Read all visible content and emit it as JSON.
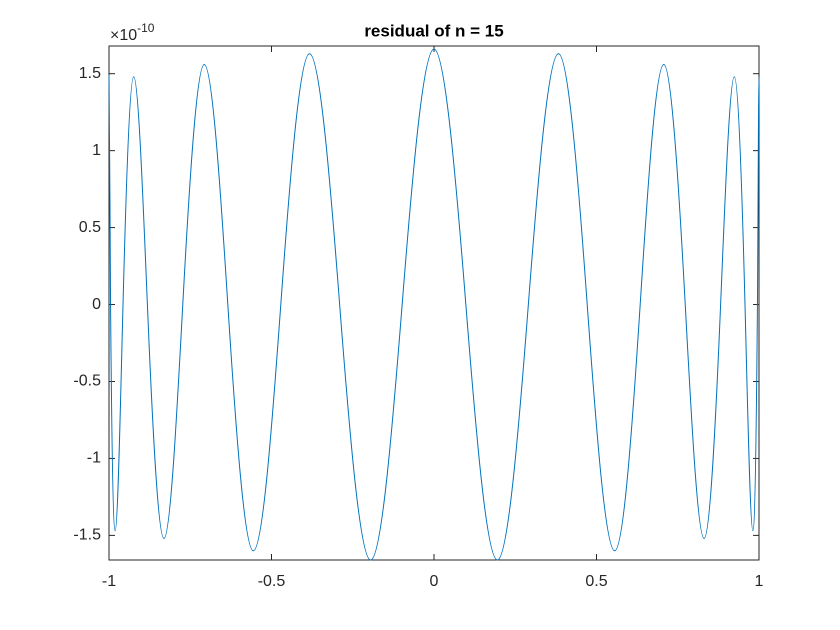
{
  "chart_data": {
    "type": "line",
    "title": "residual of n  = 15",
    "y_multiplier": "×10",
    "y_exponent": "-10",
    "x": [
      -1,
      -0.9952,
      -0.981,
      -0.9569,
      -0.924,
      -0.8819,
      -0.831,
      -0.773,
      -0.707,
      -0.6344,
      -0.556,
      -0.4714,
      -0.383,
      -0.2903,
      -0.195,
      -0.098,
      0,
      0.098,
      0.195,
      0.2903,
      0.383,
      0.4714,
      0.556,
      0.6344,
      0.707,
      0.773,
      0.831,
      0.8819,
      0.924,
      0.9569,
      0.981,
      0.9952,
      1
    ],
    "series": [
      {
        "color": "#0072bd",
        "values": [
          1.49,
          0,
          -1.47,
          0,
          1.48,
          0,
          -1.52,
          0,
          1.56,
          0,
          -1.6,
          0,
          1.63,
          0,
          -1.66,
          0,
          1.66,
          0,
          -1.66,
          0,
          1.63,
          0,
          -1.6,
          0,
          1.56,
          0,
          -1.52,
          0,
          1.48,
          0,
          -1.47,
          0,
          1.48
        ]
      }
    ],
    "xlim": [
      -1,
      1
    ],
    "xticks": [
      -1,
      -0.5,
      0,
      0.5,
      1
    ],
    "ylim": [
      -1.66,
      1.68
    ],
    "yticks": [
      -1.5,
      -1,
      -0.5,
      0,
      0.5,
      1,
      1.5
    ]
  }
}
